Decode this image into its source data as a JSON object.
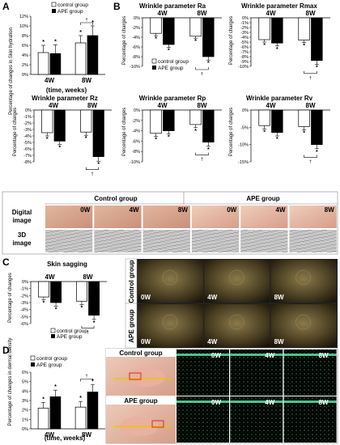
{
  "panel_labels": {
    "A": "A",
    "B": "B",
    "C": "C",
    "D": "D"
  },
  "panel_A": {
    "ylabel": "Percentage of changes in Skin hydration",
    "xlabel": "(time, weeks)"
  },
  "panel_B": {
    "ylabel": "Percentage of charges"
  },
  "panel_C": {
    "ylabel": "Percentage of changes"
  },
  "panel_D": {
    "ylabel": "Percentage of changes in dermal density",
    "xlabel": "(time, weeks)"
  },
  "legend": {
    "control": "control group",
    "ape": "APE group",
    "control_cap": "control group",
    "ape_cap": "APE group"
  },
  "photo_grid": {
    "group_headers": [
      "Control group",
      "APE group"
    ],
    "rows": [
      "Digital image",
      "3D image"
    ],
    "time_labels": [
      "0W",
      "4W",
      "8W",
      "0W",
      "4W",
      "8W"
    ]
  },
  "sagging_photos": {
    "rows": [
      "Control group",
      "APE group"
    ],
    "time_labels": [
      "0W",
      "4W",
      "8W"
    ]
  },
  "dermal_photos": {
    "left_labels": [
      "Control group",
      "APE group"
    ],
    "time_labels": [
      "0W",
      "4W",
      "8W"
    ]
  },
  "chart_data": [
    {
      "id": "A",
      "type": "bar",
      "title": "",
      "categories": [
        "4W",
        "8W"
      ],
      "series": [
        {
          "name": "control group",
          "values": [
            4.5,
            6.5
          ],
          "errors": [
            1.5,
            1.5
          ]
        },
        {
          "name": "APE group",
          "values": [
            4.3,
            8.0
          ],
          "errors": [
            1.8,
            2.0
          ]
        }
      ],
      "ylim": [
        0,
        12
      ],
      "yticks": [
        0,
        2,
        4,
        6,
        8,
        10,
        12
      ],
      "tick_suffix": "%"
    },
    {
      "id": "B-Ra",
      "type": "bar",
      "title": "Wrinkle parameter Ra",
      "categories": [
        "4W",
        "8W"
      ],
      "series": [
        {
          "name": "control group",
          "values": [
            -3.2,
            -3.8
          ],
          "errors": [
            0.5,
            0.4
          ]
        },
        {
          "name": "APE group",
          "values": [
            -5.5,
            -8.0
          ],
          "errors": [
            0.6,
            0.7
          ]
        }
      ],
      "ylim": [
        -10,
        0
      ],
      "yticks": [
        0,
        -2,
        -4,
        -6,
        -8,
        -10
      ],
      "tick_suffix": "%"
    },
    {
      "id": "B-Rmax",
      "type": "bar",
      "title": "Wrinkle parameter Rmax",
      "categories": [
        "4W",
        "8W"
      ],
      "series": [
        {
          "name": "control group",
          "values": [
            -4.5,
            -4.6
          ],
          "errors": [
            0.5,
            0.5
          ]
        },
        {
          "name": "APE group",
          "values": [
            -5.2,
            -8.8
          ],
          "errors": [
            0.6,
            0.8
          ]
        }
      ],
      "ylim": [
        -10,
        0
      ],
      "yticks": [
        0,
        -1,
        -2,
        -3,
        -4,
        -5,
        -6,
        -7,
        -8,
        -9,
        -10
      ],
      "tick_suffix": "%"
    },
    {
      "id": "B-Rz",
      "type": "bar",
      "title": "Wrinkle parameter Rz",
      "categories": [
        "4W",
        "8W"
      ],
      "series": [
        {
          "name": "control group",
          "values": [
            -3.5,
            -3.4
          ],
          "errors": [
            0.5,
            0.5
          ]
        },
        {
          "name": "APE group",
          "values": [
            -4.8,
            -7.2
          ],
          "errors": [
            0.5,
            0.7
          ]
        }
      ],
      "ylim": [
        -8,
        0
      ],
      "yticks": [
        0,
        -1,
        -2,
        -3,
        -4,
        -5,
        -6,
        -7,
        -8
      ],
      "tick_suffix": "%"
    },
    {
      "id": "B-Rp",
      "type": "bar",
      "title": "Wrinkle parameter Rp",
      "categories": [
        "4W",
        "8W"
      ],
      "series": [
        {
          "name": "control group",
          "values": [
            -4.5,
            -2.8
          ],
          "errors": [
            0.6,
            0.6
          ]
        },
        {
          "name": "APE group",
          "values": [
            -4.0,
            -6.2
          ],
          "errors": [
            0.6,
            0.8
          ]
        }
      ],
      "ylim": [
        -10,
        0
      ],
      "yticks": [
        0,
        -2,
        -4,
        -6,
        -8,
        -10
      ],
      "tick_suffix": "%"
    },
    {
      "id": "B-Rv",
      "type": "bar",
      "title": "Wrinkle parameter Rv",
      "categories": [
        "4W",
        "8W"
      ],
      "series": [
        {
          "name": "control group",
          "values": [
            -4.5,
            -4.8
          ],
          "errors": [
            1.0,
            1.0
          ]
        },
        {
          "name": "APE group",
          "values": [
            -6.5,
            -10.0
          ],
          "errors": [
            1.0,
            1.2
          ]
        }
      ],
      "ylim": [
        -15,
        0
      ],
      "yticks": [
        0,
        -5,
        -10,
        -15
      ],
      "tick_suffix": "%"
    },
    {
      "id": "C",
      "type": "bar",
      "title": "Skin sagging",
      "categories": [
        "4W",
        "8W"
      ],
      "series": [
        {
          "name": "control group",
          "values": [
            -2.2,
            -2.8
          ],
          "errors": [
            0.4,
            0.5
          ]
        },
        {
          "name": "APE group",
          "values": [
            -3.0,
            -4.8
          ],
          "errors": [
            0.5,
            0.6
          ]
        }
      ],
      "ylim": [
        -6,
        0
      ],
      "yticks": [
        0,
        -1,
        -2,
        -3,
        -4,
        -5,
        -6
      ],
      "tick_suffix": "%"
    },
    {
      "id": "D",
      "type": "bar",
      "title": "",
      "categories": [
        "4W",
        "8W"
      ],
      "series": [
        {
          "name": "control group",
          "values": [
            2.2,
            2.3
          ],
          "errors": [
            0.6,
            0.6
          ]
        },
        {
          "name": "APE group",
          "values": [
            3.4,
            3.9
          ],
          "errors": [
            0.7,
            0.8
          ]
        }
      ],
      "ylim": [
        0,
        6
      ],
      "yticks": [
        0,
        1,
        2,
        3,
        4,
        5,
        6
      ],
      "tick_suffix": "%"
    }
  ]
}
